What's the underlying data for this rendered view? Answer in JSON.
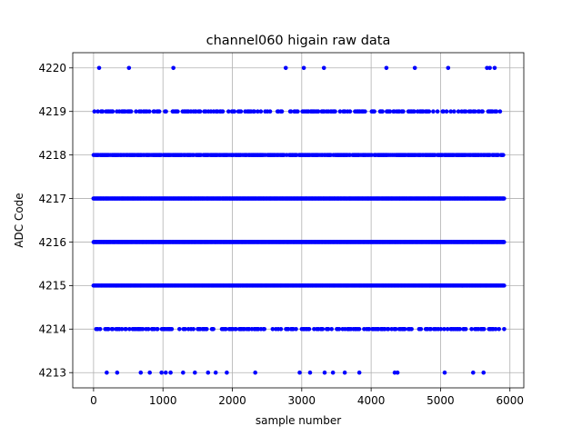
{
  "chart_data": {
    "type": "scatter",
    "title": "channel060 higain raw data",
    "xlabel": "sample number",
    "ylabel": "ADC Code",
    "xlim": [
      -300,
      6200
    ],
    "ylim": [
      4212.65,
      4220.35
    ],
    "xticks": [
      0,
      1000,
      2000,
      3000,
      4000,
      5000,
      6000
    ],
    "yticks": [
      4213,
      4214,
      4215,
      4216,
      4217,
      4218,
      4219,
      4220
    ],
    "xtick_labels": [
      "0",
      "1000",
      "2000",
      "3000",
      "4000",
      "5000",
      "6000"
    ],
    "ytick_labels": [
      "4213",
      "4214",
      "4215",
      "4216",
      "4217",
      "4218",
      "4219",
      "4220"
    ],
    "grid": true,
    "marker_color": "#0000ff",
    "series": [
      {
        "x_count": 5926,
        "levels": [
          {
            "y": 4220,
            "x": [
              80,
              510,
              1150,
              2770,
              3030,
              3320,
              4220,
              4630,
              5110,
              5670,
              5710,
              5780
            ]
          },
          {
            "y": 4219,
            "density": "medium"
          },
          {
            "y": 4218,
            "density": "dense"
          },
          {
            "y": 4217,
            "density": "continuous"
          },
          {
            "y": 4216,
            "density": "continuous"
          },
          {
            "y": 4215,
            "density": "continuous"
          },
          {
            "y": 4214,
            "density": "medium"
          },
          {
            "y": 4213,
            "x": [
              190,
              340,
              680,
              810,
              980,
              1040,
              1110,
              1290,
              1460,
              1650,
              1760,
              1920,
              2330,
              2970,
              3120,
              3330,
              3450,
              3620,
              3830,
              4340,
              4380,
              5060,
              5470,
              5620
            ]
          }
        ]
      }
    ]
  }
}
